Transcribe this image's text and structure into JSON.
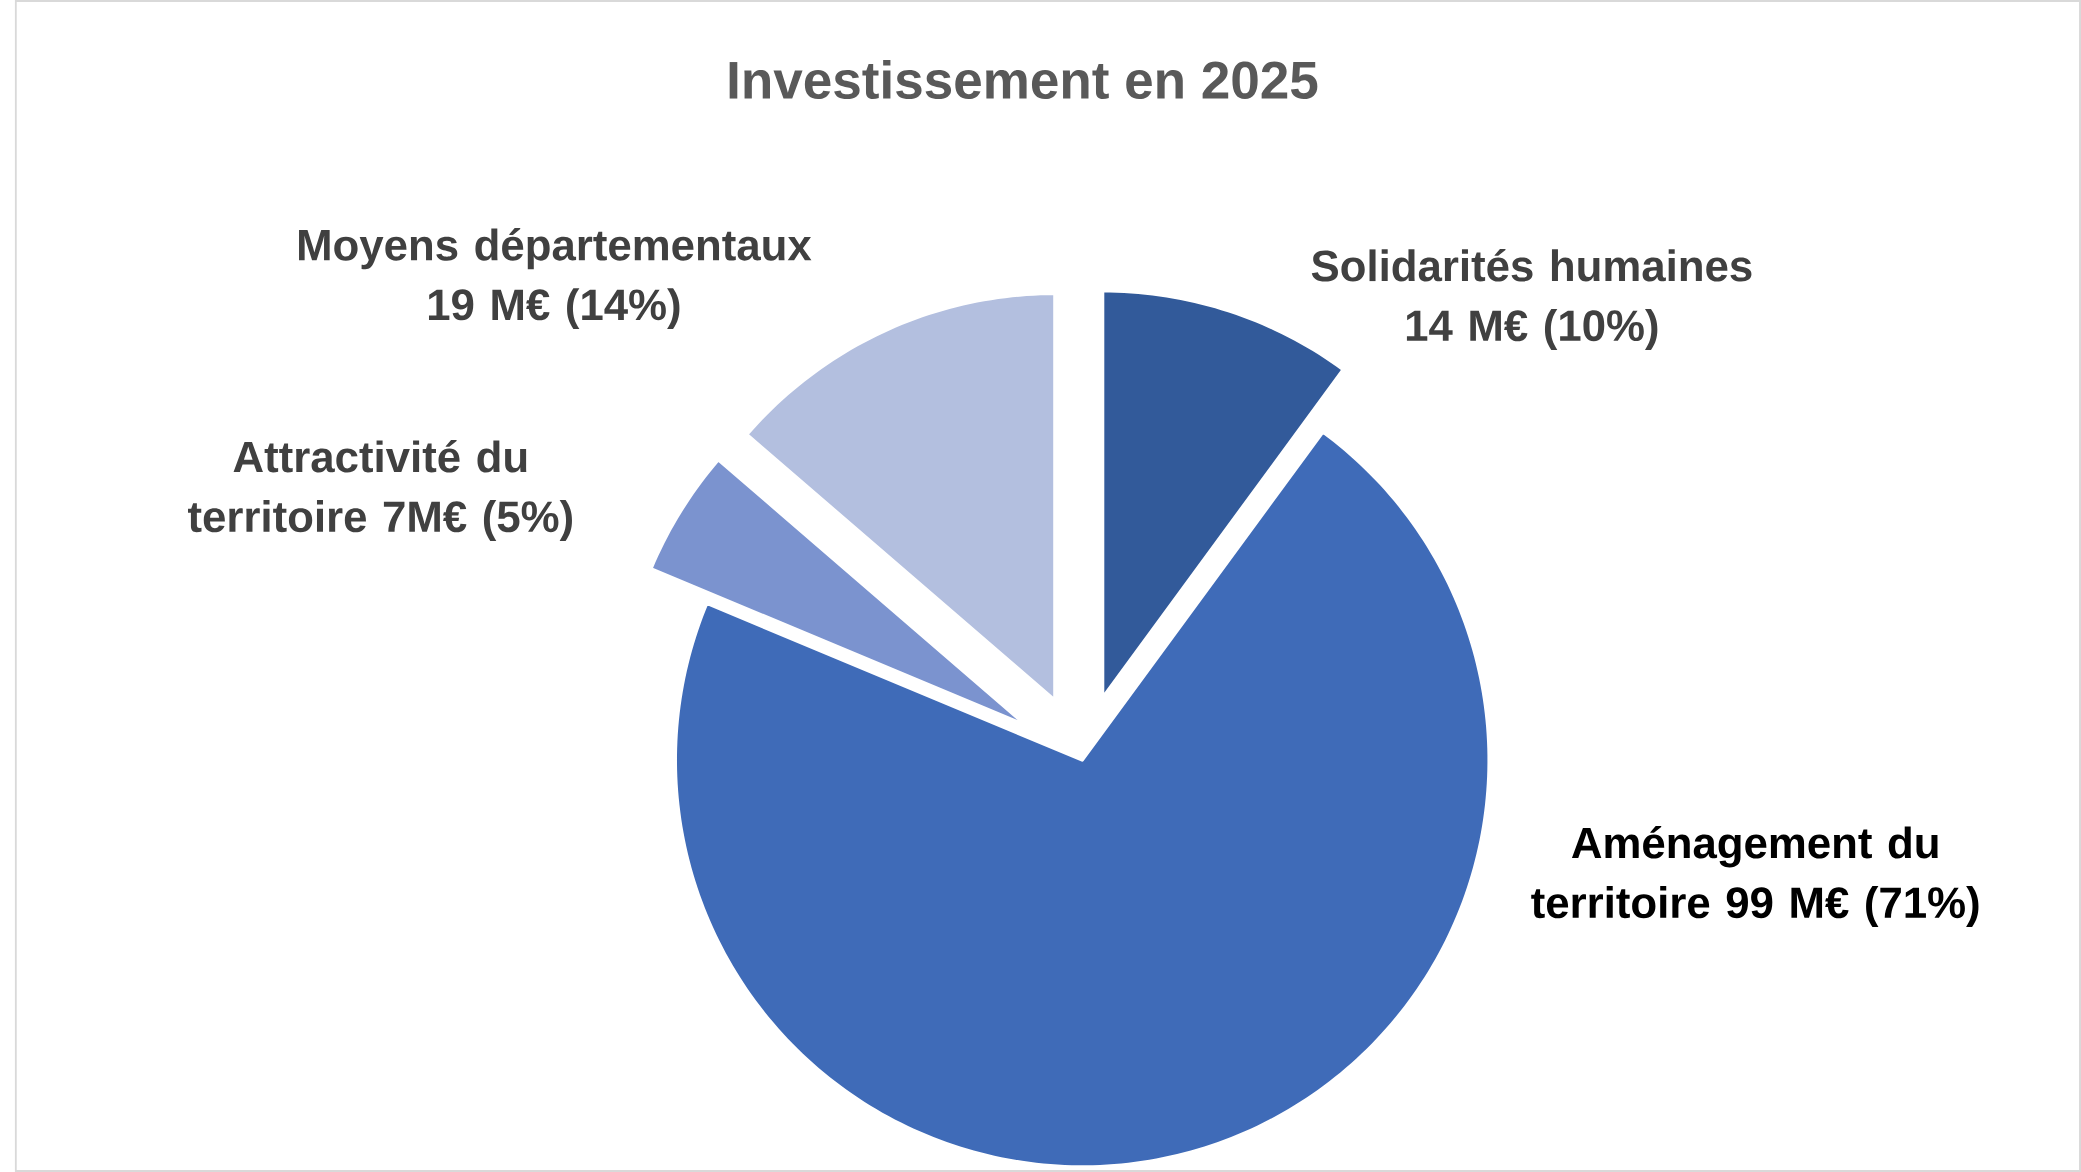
{
  "chart_data": {
    "type": "pie",
    "title": "Investissement en 2025",
    "categories": [
      "Solidarités humaines 14 M€ (10%)",
      "Aménagement du territoire 99 M€ (71%)",
      "Attractivité du territoire 7M€ (5%)",
      "Moyens départementaux 19 M€ (14%)"
    ],
    "values": [
      14,
      99,
      7,
      19
    ],
    "colors": [
      "#325a9a",
      "#3f6bb8",
      "#7b93cf",
      "#b3bfdf"
    ]
  }
}
